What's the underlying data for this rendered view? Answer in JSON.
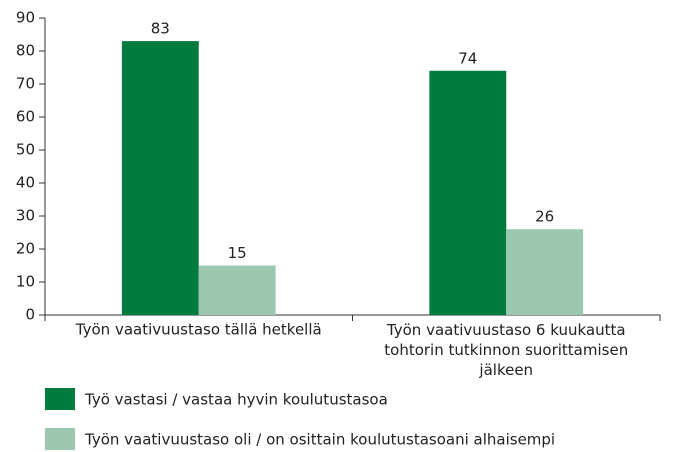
{
  "chart_data": {
    "type": "bar",
    "categories": [
      "Työn vaativuustaso tällä hetkellä",
      "Työn vaativuustaso 6 kuukautta tohtorin tutkinnon suorittamisen jälkeen"
    ],
    "series": [
      {
        "name": "Työ vastasi / vastaa hyvin koulutustasoa",
        "color": "#007a3d",
        "values": [
          83,
          74
        ]
      },
      {
        "name": "Työn vaativuustaso oli / on osittain koulutustasoani alhaisempi",
        "color": "#9dc8b0",
        "values": [
          15,
          26
        ]
      }
    ],
    "ylim": [
      0,
      90
    ],
    "yticks": [
      0,
      10,
      20,
      30,
      40,
      50,
      60,
      70,
      80,
      90
    ],
    "grid": false,
    "legend": "bottom"
  }
}
